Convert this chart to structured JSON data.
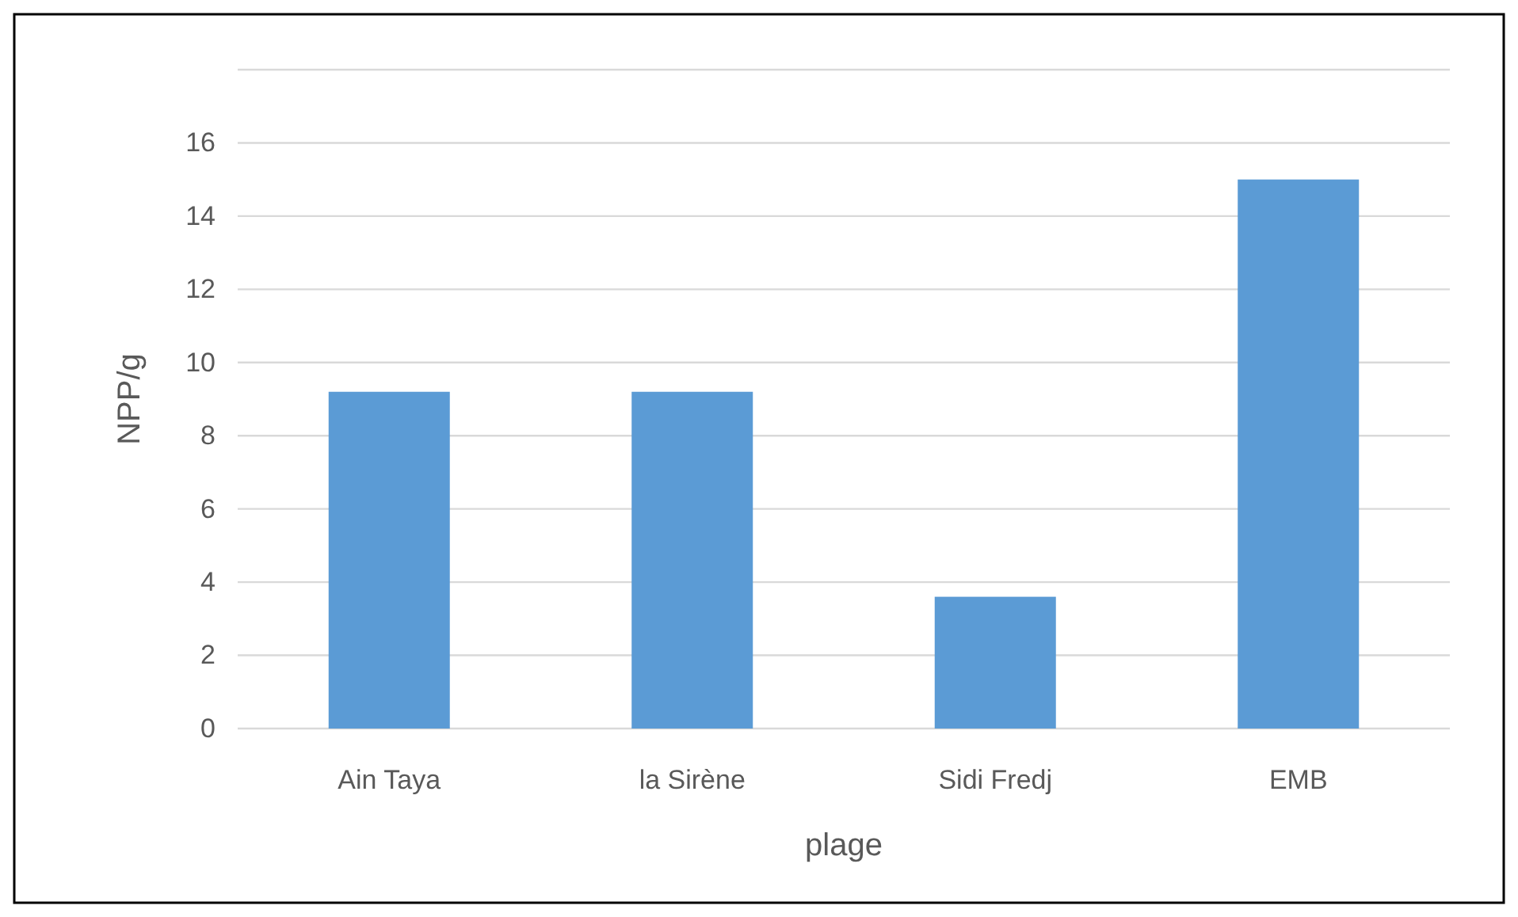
{
  "chart_data": {
    "type": "bar",
    "xlabel": "plage",
    "ylabel": "NPP/g",
    "categories": [
      "Ain Taya",
      "la Sirène",
      "Sidi Fredj",
      "EMB"
    ],
    "values": [
      9.2,
      9.2,
      3.6,
      15.0
    ],
    "color": "#5b9bd5",
    "ylim": [
      0,
      18
    ],
    "yticks": [
      0,
      2,
      4,
      6,
      8,
      10,
      12,
      14,
      16,
      {
        "value": 18,
        "label": null
      }
    ],
    "grid": "y"
  }
}
